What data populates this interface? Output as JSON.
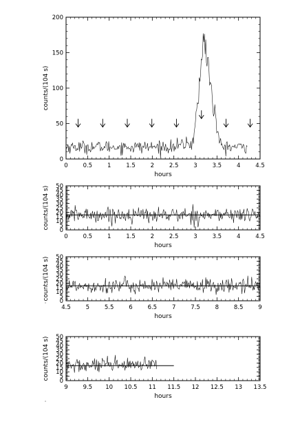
{
  "chart_data": [
    {
      "type": "line",
      "xlabel": "hours",
      "ylabel": "counts/(104 s)",
      "xlim": [
        0,
        4.5
      ],
      "ylim": [
        0,
        200
      ],
      "xticks": [
        "0",
        "0.5",
        "1",
        "1.5",
        "2",
        "2.5",
        "3",
        "3.5",
        "4",
        "4.5"
      ],
      "yticks": [
        "0",
        "50",
        "100",
        "150",
        "200"
      ],
      "baseline": 17,
      "data_end": 4.2,
      "flare": {
        "start": 2.88,
        "peak_time": 3.2,
        "peak_value": 180,
        "end": 3.6
      },
      "annotations": {
        "type": "arrows",
        "x": [
          0.28,
          0.85,
          1.42,
          1.99,
          2.56,
          3.14,
          3.71,
          4.27
        ],
        "y": [
          45,
          45,
          45,
          45,
          45,
          57,
          45,
          45
        ]
      }
    },
    {
      "type": "line",
      "xlabel": "hours",
      "ylabel": "counts/(104 s)",
      "xlim": [
        0,
        4.5
      ],
      "ylim": [
        0,
        50
      ],
      "xticks": [
        "0",
        "0.5",
        "1",
        "1.5",
        "2",
        "2.5",
        "3",
        "3.5",
        "4",
        "4.5"
      ],
      "yticks": [
        "0",
        "5",
        "10",
        "15",
        "20",
        "25",
        "30",
        "35",
        "40",
        "45",
        "50"
      ],
      "baseline": 17,
      "data_end": 4.5,
      "reference_line": 17
    },
    {
      "type": "line",
      "xlabel": "hours",
      "ylabel": "counts/(104 s)",
      "xlim": [
        4.5,
        9
      ],
      "ylim": [
        0,
        50
      ],
      "xticks": [
        "4.5",
        "5",
        "5.5",
        "6",
        "6.5",
        "7",
        "7.5",
        "8",
        "8.5",
        "9"
      ],
      "yticks": [
        "0",
        "5",
        "10",
        "15",
        "20",
        "25",
        "30",
        "35",
        "40",
        "45",
        "50"
      ],
      "baseline": 17,
      "data_end": 9,
      "reference_line": 17
    },
    {
      "type": "line",
      "xlabel": "hours",
      "ylabel": "counts/(104 s)",
      "xlim": [
        9,
        13.5
      ],
      "ylim": [
        0,
        50
      ],
      "xticks": [
        "9",
        "9.5",
        "10",
        "10.5",
        "11",
        "11.5",
        "12",
        "12.5",
        "13",
        "13.5"
      ],
      "yticks": [
        "0",
        "5",
        "10",
        "15",
        "20",
        "25",
        "30",
        "35",
        "40",
        "45",
        "50"
      ],
      "baseline": 17,
      "data_end": 11.1,
      "reference_line": 17,
      "reference_line_end": 11.5
    }
  ]
}
